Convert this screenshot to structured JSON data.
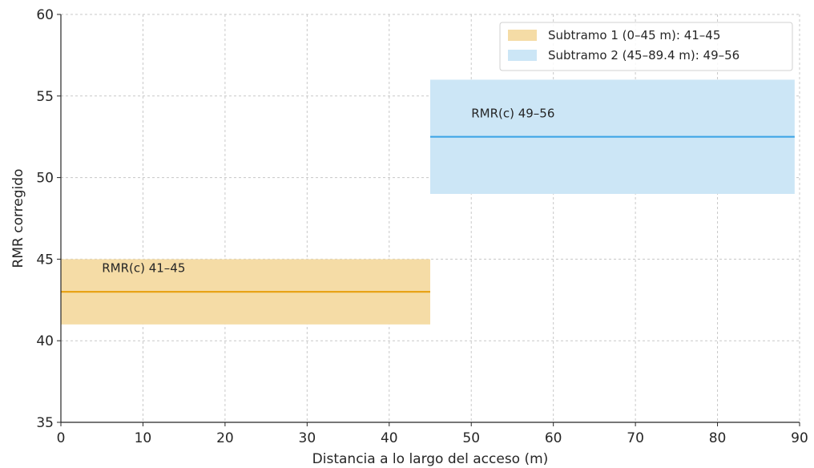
{
  "chart_data": {
    "type": "area",
    "title": "",
    "xlabel": "Distancia a lo largo del acceso (m)",
    "ylabel": "RMR corregido",
    "xlim": [
      0,
      90
    ],
    "ylim": [
      35,
      60
    ],
    "xticks": [
      0,
      10,
      20,
      30,
      40,
      50,
      60,
      70,
      80,
      90
    ],
    "yticks": [
      35,
      40,
      45,
      50,
      55,
      60
    ],
    "grid": true,
    "legend_position": "top-right",
    "series": [
      {
        "name": "Subtramo 1 (0–45 m): 41–45",
        "x_start": 0,
        "x_end": 45,
        "y_low": 41,
        "y_high": 45,
        "y_mid": 43,
        "fill_color": "#f5dca6",
        "line_color": "#e8a317",
        "annotation": "RMR(c) 41–45",
        "annotation_x": 5,
        "annotation_y": 44.2
      },
      {
        "name": "Subtramo 2 (45–89.4 m): 49–56",
        "x_start": 45,
        "x_end": 89.4,
        "y_low": 49,
        "y_high": 56,
        "y_mid": 52.5,
        "fill_color": "#cce6f6",
        "line_color": "#3fa5e6",
        "annotation": "RMR(c) 49–56",
        "annotation_x": 50,
        "annotation_y": 53.7
      }
    ]
  }
}
